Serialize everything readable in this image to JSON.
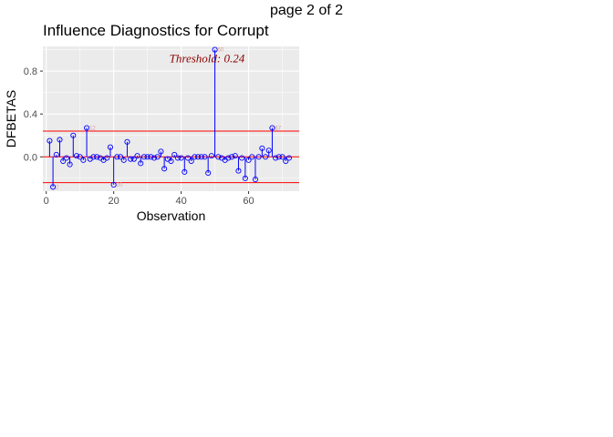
{
  "page_label": "page 2 of 2",
  "chart_data": {
    "type": "scatter",
    "title": "Influence Diagnostics for Corrupt",
    "xlabel": "Observation",
    "ylabel": "DFBETAS",
    "xlim": [
      -1,
      75
    ],
    "ylim": [
      -0.32,
      1.03
    ],
    "x_ticks": [
      0,
      20,
      40,
      60
    ],
    "y_ticks": [
      0.0,
      0.4,
      0.8
    ],
    "y_tick_labels": [
      "0.0",
      "0.4",
      "0.8"
    ],
    "threshold": 0.24,
    "threshold_label": "Threshold: 0.24",
    "grid": true,
    "colors": {
      "points": "#0000ff",
      "threshold": "#ff0000",
      "panel": "#ebebeb",
      "grid": "#ffffff",
      "label": "#8b0000"
    },
    "x": [
      1,
      2,
      3,
      4,
      5,
      6,
      7,
      8,
      9,
      10,
      11,
      12,
      13,
      14,
      15,
      16,
      17,
      18,
      19,
      20,
      21,
      22,
      23,
      24,
      25,
      26,
      27,
      28,
      29,
      30,
      31,
      32,
      33,
      34,
      35,
      36,
      37,
      38,
      39,
      40,
      41,
      42,
      43,
      44,
      45,
      46,
      47,
      48,
      49,
      50,
      51,
      52,
      53,
      54,
      55,
      56,
      57,
      58,
      59,
      60,
      61,
      62,
      63,
      64,
      65,
      66,
      67,
      68,
      69,
      70,
      71,
      72
    ],
    "values": [
      0.15,
      -0.28,
      0.02,
      0.16,
      -0.04,
      -0.01,
      -0.07,
      0.2,
      0.01,
      0.0,
      -0.03,
      0.27,
      -0.02,
      0.0,
      0.0,
      -0.01,
      -0.03,
      -0.01,
      0.09,
      -0.26,
      0.0,
      0.0,
      -0.03,
      0.14,
      -0.02,
      -0.02,
      0.01,
      -0.06,
      0.0,
      0.0,
      0.0,
      -0.01,
      0.0,
      0.05,
      -0.11,
      -0.02,
      -0.04,
      0.02,
      -0.01,
      -0.01,
      -0.14,
      -0.01,
      -0.04,
      0.0,
      0.0,
      0.0,
      0.0,
      -0.15,
      0.01,
      1.0,
      0.0,
      -0.01,
      -0.03,
      -0.01,
      0.0,
      0.01,
      -0.13,
      -0.01,
      -0.2,
      -0.03,
      0.0,
      -0.21,
      0.0,
      0.08,
      0.0,
      0.06,
      0.27,
      -0.01,
      0.0,
      0.0,
      -0.04,
      -0.01
    ],
    "outliers": [
      {
        "x": 2,
        "label": "2"
      },
      {
        "x": 12,
        "label": "12"
      },
      {
        "x": 20,
        "label": "20"
      },
      {
        "x": 50,
        "label": "50"
      },
      {
        "x": 67,
        "label": "67"
      }
    ]
  }
}
